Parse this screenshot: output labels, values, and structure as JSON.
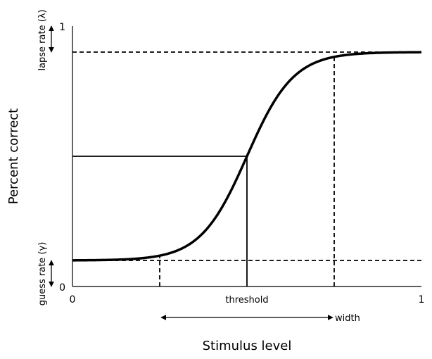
{
  "chart_data": {
    "type": "line",
    "xlabel": "Stimulus level",
    "ylabel": "Percent correct",
    "xlim": [
      0,
      1
    ],
    "ylim": [
      0,
      1
    ],
    "x_ticks": [
      {
        "value": 0,
        "label": "0"
      },
      {
        "value": 1,
        "label": "1"
      }
    ],
    "y_ticks": [
      {
        "value": 0,
        "label": "0"
      },
      {
        "value": 1,
        "label": "1"
      }
    ],
    "grid": false,
    "curve": {
      "description_type": "sigmoid",
      "guess_rate": 0.1,
      "lapse_rate": 0.1,
      "threshold": 0.5,
      "slope": 15
    },
    "annotations": {
      "lapse_label": "lapse rate (λ)",
      "guess_label": "guess rate (γ)",
      "threshold_label": "threshold",
      "width_label": "width",
      "width_range": [
        0.25,
        0.75
      ],
      "threshold_y": 0.5
    }
  }
}
